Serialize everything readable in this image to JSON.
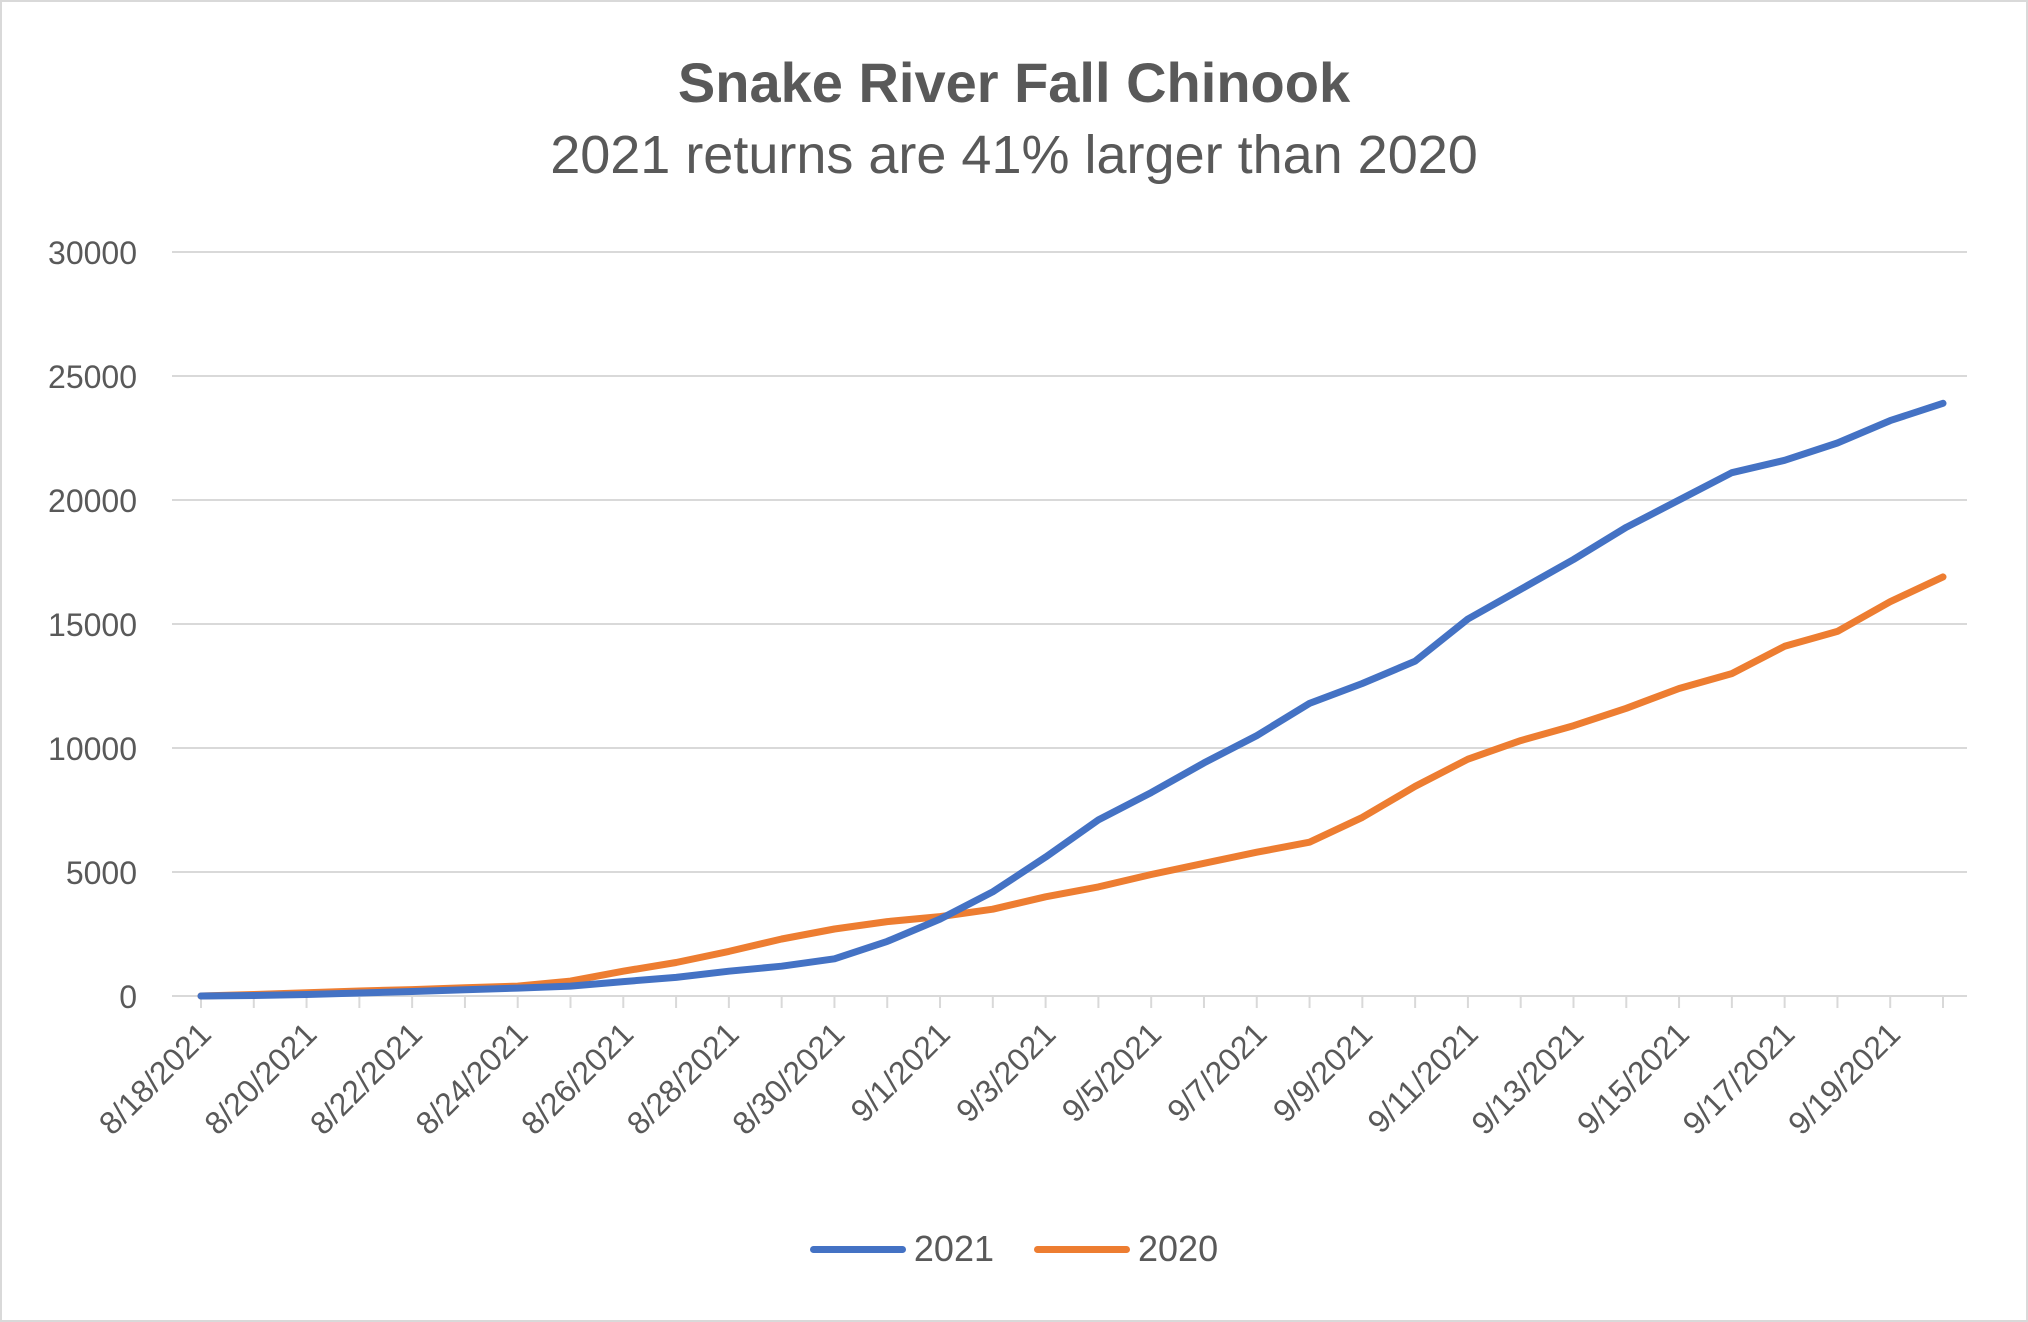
{
  "chart_data": {
    "type": "line",
    "title": "Snake River Fall Chinook",
    "subtitle": "2021 returns are 41% larger than 2020",
    "xlabel": "",
    "ylabel": "",
    "ylim": [
      0,
      30000
    ],
    "yticks": [
      "0",
      "5000",
      "10000",
      "15000",
      "20000",
      "25000",
      "30000"
    ],
    "x": [
      "8/18/2021",
      "8/19/2021",
      "8/20/2021",
      "8/21/2021",
      "8/22/2021",
      "8/23/2021",
      "8/24/2021",
      "8/25/2021",
      "8/26/2021",
      "8/27/2021",
      "8/28/2021",
      "8/29/2021",
      "8/30/2021",
      "8/31/2021",
      "9/1/2021",
      "9/2/2021",
      "9/3/2021",
      "9/4/2021",
      "9/5/2021",
      "9/6/2021",
      "9/7/2021",
      "9/8/2021",
      "9/9/2021",
      "9/10/2021",
      "9/11/2021",
      "9/12/2021",
      "9/13/2021",
      "9/14/2021",
      "9/15/2021",
      "9/16/2021",
      "9/17/2021",
      "9/18/2021",
      "9/19/2021",
      "9/20/2021"
    ],
    "xtick_labels": [
      "8/18/2021",
      "8/20/2021",
      "8/22/2021",
      "8/24/2021",
      "8/26/2021",
      "8/28/2021",
      "8/30/2021",
      "9/1/2021",
      "9/3/2021",
      "9/5/2021",
      "9/7/2021",
      "9/9/2021",
      "9/11/2021",
      "9/13/2021",
      "9/15/2021",
      "9/17/2021",
      "9/19/2021"
    ],
    "series": [
      {
        "name": "2021",
        "color": "#4472c4",
        "values": [
          0,
          20,
          60,
          120,
          180,
          250,
          320,
          400,
          580,
          750,
          1000,
          1200,
          1500,
          2200,
          3100,
          4200,
          5600,
          7100,
          8200,
          9400,
          10500,
          11800,
          12600,
          13500,
          15200,
          16400,
          17600,
          18900,
          20000,
          21100,
          21600,
          22300,
          23200,
          23900
        ]
      },
      {
        "name": "2020",
        "color": "#ed7d31",
        "values": [
          0,
          60,
          130,
          200,
          260,
          330,
          400,
          600,
          1000,
          1350,
          1800,
          2300,
          2700,
          3000,
          3200,
          3500,
          4000,
          4400,
          4900,
          5350,
          5800,
          6200,
          7200,
          8450,
          9550,
          10300,
          10900,
          11600,
          12400,
          13000,
          14100,
          14700,
          15900,
          16900
        ]
      }
    ],
    "grid": "horizontal",
    "legend_position": "bottom"
  }
}
